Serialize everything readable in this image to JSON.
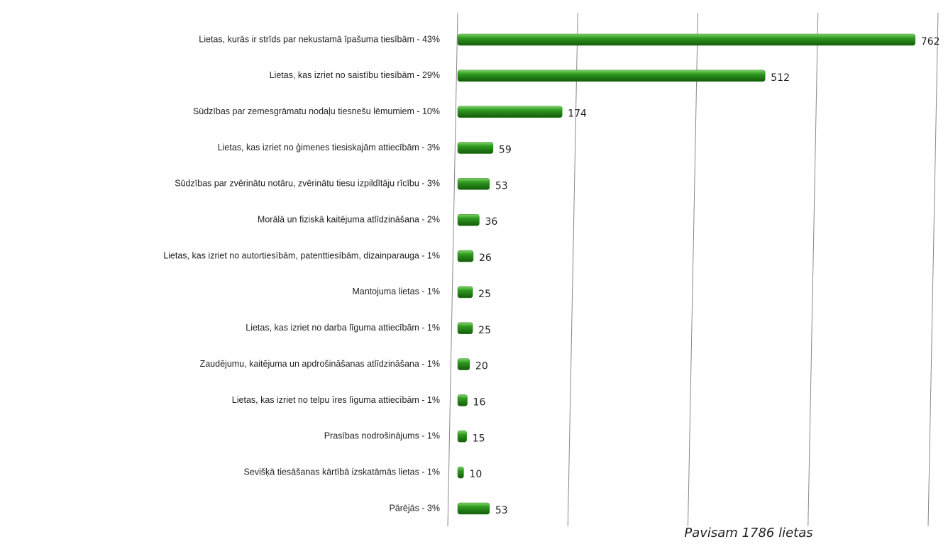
{
  "chart_data": {
    "type": "bar",
    "orientation": "horizontal",
    "categories": [
      "Lietas, kurās ir strīds par nekustamā īpašuma tiesībām - 43%",
      "Lietas, kas izriet no saistību tiesībām - 29%",
      "Sūdzības par zemesgrāmatu nodaļu tiesnešu lēmumiem - 10%",
      "Lietas, kas izriet no ģimenes tiesiskajām attiecībām - 3%",
      "Sūdzības par zvērinātu notāru, zvērinātu tiesu izpildītāju rīcību - 3%",
      "Morālā un fiziskā kaitējuma atlīdzināšana - 2%",
      "Lietas, kas izriet no autortiesībām, patenttiesībām, dizainparauga - 1%",
      "Mantojuma lietas - 1%",
      "Lietas, kas izriet no darba līguma attiecībām - 1%",
      "Zaudējumu, kaitējuma un apdrošināšanas atlīdzināšana - 1%",
      "Lietas, kas izriet no telpu īres līguma attiecībām - 1%",
      "Prasības nodrošinājums - 1%",
      "Sevišķā tiesāšanas kārtībā izskatāmās lietas - 1%",
      "Pārējās - 3%"
    ],
    "values": [
      762,
      512,
      174,
      59,
      53,
      36,
      26,
      25,
      25,
      20,
      16,
      15,
      10,
      53
    ],
    "color": "#2e8b1e",
    "xlim": [
      0,
      800
    ],
    "xticks": [
      0,
      200,
      400,
      600,
      800
    ],
    "grid": true,
    "annotation": "Pavisam 1786 lietas"
  }
}
